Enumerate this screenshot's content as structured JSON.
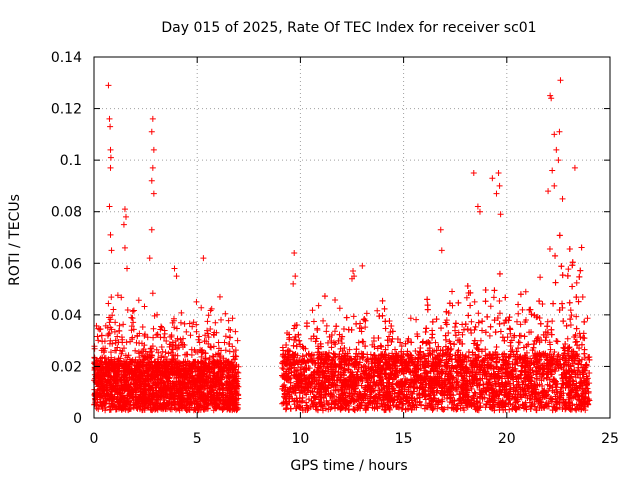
{
  "chart_data": {
    "type": "scatter",
    "title": "Day 015 of 2025, Rate Of TEC Index for receiver sc01",
    "xlabel": "GPS time / hours",
    "ylabel": "ROTI / TECUs",
    "xlim": [
      0,
      25
    ],
    "ylim": [
      0,
      0.14
    ],
    "x_ticks": [
      0,
      5,
      10,
      15,
      20,
      25
    ],
    "x_tick_labels": [
      "0",
      "5",
      "10",
      "15",
      "20",
      "25"
    ],
    "y_ticks": [
      0,
      0.02,
      0.04,
      0.06,
      0.08,
      0.1,
      0.12,
      0.14
    ],
    "y_tick_labels": [
      "0",
      "0.02",
      "0.04",
      "0.06",
      "0.08",
      "0.1",
      "0.12",
      "0.14"
    ],
    "grid": true,
    "marker": "+",
    "marker_color": "#ff0000",
    "series": [
      {
        "name": "ROTI",
        "notes": "dense scatter; data gap approx 7.0-9.1 h",
        "segments": [
          {
            "x_range": [
              0.0,
              7.0
            ],
            "base_range": [
              0.003,
              0.022
            ]
          },
          {
            "x_range": [
              9.1,
              24.0
            ],
            "base_range": [
              0.003,
              0.025
            ]
          }
        ],
        "outliers": [
          {
            "x": 0.7,
            "y": 0.129
          },
          {
            "x": 0.75,
            "y": 0.116
          },
          {
            "x": 0.78,
            "y": 0.113
          },
          {
            "x": 0.8,
            "y": 0.104
          },
          {
            "x": 0.82,
            "y": 0.101
          },
          {
            "x": 0.8,
            "y": 0.097
          },
          {
            "x": 0.75,
            "y": 0.082
          },
          {
            "x": 0.8,
            "y": 0.071
          },
          {
            "x": 0.85,
            "y": 0.065
          },
          {
            "x": 1.5,
            "y": 0.081
          },
          {
            "x": 1.55,
            "y": 0.078
          },
          {
            "x": 1.45,
            "y": 0.075
          },
          {
            "x": 1.5,
            "y": 0.066
          },
          {
            "x": 1.6,
            "y": 0.058
          },
          {
            "x": 2.85,
            "y": 0.116
          },
          {
            "x": 2.8,
            "y": 0.111
          },
          {
            "x": 2.9,
            "y": 0.104
          },
          {
            "x": 2.85,
            "y": 0.097
          },
          {
            "x": 2.8,
            "y": 0.092
          },
          {
            "x": 2.9,
            "y": 0.087
          },
          {
            "x": 2.8,
            "y": 0.073
          },
          {
            "x": 2.7,
            "y": 0.062
          },
          {
            "x": 5.3,
            "y": 0.062
          },
          {
            "x": 4.0,
            "y": 0.055
          },
          {
            "x": 3.9,
            "y": 0.058
          },
          {
            "x": 9.7,
            "y": 0.064
          },
          {
            "x": 9.75,
            "y": 0.055
          },
          {
            "x": 9.65,
            "y": 0.052
          },
          {
            "x": 12.55,
            "y": 0.057
          },
          {
            "x": 12.6,
            "y": 0.055
          },
          {
            "x": 12.5,
            "y": 0.054
          },
          {
            "x": 13.0,
            "y": 0.059
          },
          {
            "x": 16.8,
            "y": 0.073
          },
          {
            "x": 16.85,
            "y": 0.065
          },
          {
            "x": 18.4,
            "y": 0.095
          },
          {
            "x": 18.6,
            "y": 0.082
          },
          {
            "x": 18.7,
            "y": 0.08
          },
          {
            "x": 19.3,
            "y": 0.093
          },
          {
            "x": 19.5,
            "y": 0.087
          },
          {
            "x": 19.6,
            "y": 0.095
          },
          {
            "x": 19.65,
            "y": 0.09
          },
          {
            "x": 19.7,
            "y": 0.079
          },
          {
            "x": 22.1,
            "y": 0.125
          },
          {
            "x": 22.15,
            "y": 0.124
          },
          {
            "x": 22.3,
            "y": 0.11
          },
          {
            "x": 22.6,
            "y": 0.131
          },
          {
            "x": 22.55,
            "y": 0.111
          },
          {
            "x": 22.4,
            "y": 0.104
          },
          {
            "x": 22.5,
            "y": 0.1
          },
          {
            "x": 22.2,
            "y": 0.096
          },
          {
            "x": 22.3,
            "y": 0.09
          },
          {
            "x": 23.3,
            "y": 0.097
          },
          {
            "x": 22.0,
            "y": 0.088
          },
          {
            "x": 22.7,
            "y": 0.085
          }
        ]
      }
    ]
  }
}
